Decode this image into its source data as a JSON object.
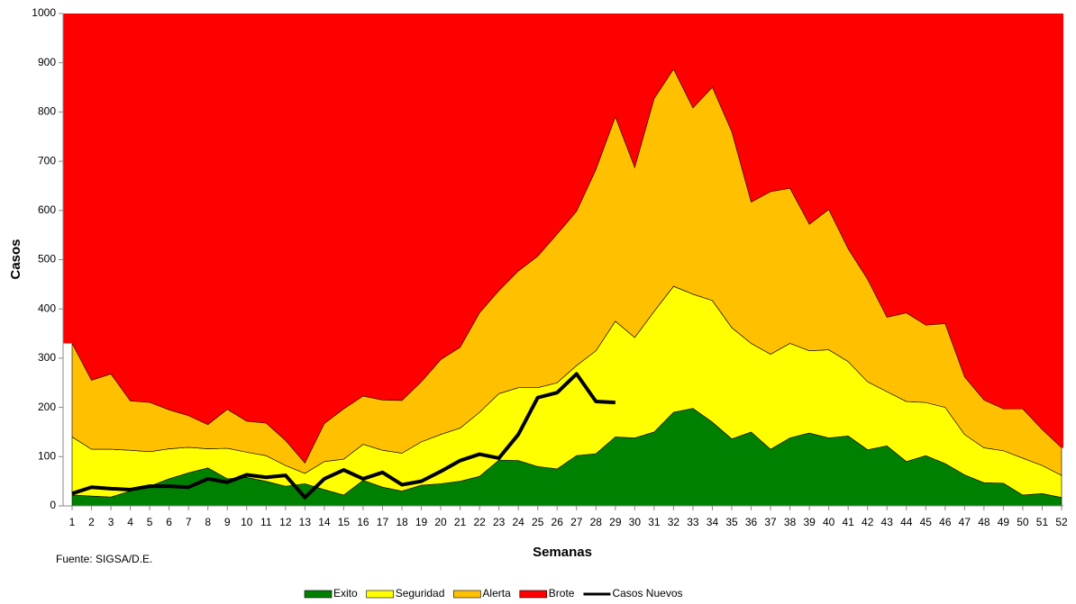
{
  "chart_data": {
    "type": "stacked-area",
    "x_label": "Semanas",
    "y_label": "Casos",
    "source": "Fuente: SIGSA/D.E.",
    "x": [
      1,
      2,
      3,
      4,
      5,
      6,
      7,
      8,
      9,
      10,
      11,
      12,
      13,
      14,
      15,
      16,
      17,
      18,
      19,
      20,
      21,
      22,
      23,
      24,
      25,
      26,
      27,
      28,
      29,
      30,
      31,
      32,
      33,
      34,
      35,
      36,
      37,
      38,
      39,
      40,
      41,
      42,
      43,
      44,
      45,
      46,
      47,
      48,
      49,
      50,
      51,
      52
    ],
    "ylim": [
      0,
      1000
    ],
    "yticks": [
      0,
      100,
      200,
      300,
      400,
      500,
      600,
      700,
      800,
      900,
      1000
    ],
    "series": [
      {
        "name": "Exito",
        "color": "#008000",
        "values": [
          22,
          20,
          18,
          30,
          40,
          55,
          67,
          77,
          55,
          58,
          50,
          40,
          45,
          33,
          22,
          52,
          38,
          30,
          42,
          45,
          50,
          60,
          93,
          92,
          80,
          75,
          102,
          106,
          140,
          138,
          150,
          190,
          198,
          170,
          136,
          150,
          115,
          138,
          148,
          138,
          142,
          114,
          122,
          90,
          102,
          86,
          63,
          47,
          46,
          22,
          25,
          17
        ]
      },
      {
        "name": "Seguridad",
        "color": "#ffff00",
        "values": [
          118,
          95,
          97,
          83,
          70,
          61,
          52,
          39,
          62,
          51,
          52,
          42,
          21,
          57,
          73,
          73,
          75,
          77,
          88,
          100,
          108,
          130,
          135,
          148,
          160,
          175,
          183,
          209,
          235,
          204,
          245,
          256,
          232,
          247,
          226,
          180,
          193,
          192,
          167,
          179,
          151,
          138,
          110,
          122,
          108,
          114,
          82,
          71,
          66,
          75,
          57,
          45
        ]
      },
      {
        "name": "Alerta",
        "color": "#ffc000",
        "values": [
          190,
          140,
          153,
          100,
          100,
          79,
          64,
          49,
          79,
          63,
          66,
          51,
          21,
          77,
          102,
          98,
          102,
          107,
          122,
          152,
          164,
          202,
          209,
          237,
          267,
          302,
          313,
          368,
          415,
          345,
          432,
          441,
          378,
          433,
          398,
          287,
          330,
          315,
          257,
          285,
          229,
          208,
          151,
          180,
          157,
          170,
          117,
          97,
          85,
          100,
          73,
          56
        ]
      }
    ],
    "fill_series": {
      "name": "Brote",
      "color": "#ff0000"
    },
    "line_series": {
      "name": "Casos Nuevos",
      "color": "#000000",
      "values": [
        25,
        38,
        35,
        33,
        40,
        40,
        38,
        55,
        48,
        63,
        58,
        62,
        17,
        55,
        73,
        55,
        68,
        43,
        50,
        70,
        92,
        105,
        97,
        145,
        220,
        230,
        268,
        212,
        210,
        null,
        null,
        null,
        null,
        null,
        null,
        null,
        null,
        null,
        null,
        null,
        null,
        null,
        null,
        null,
        null,
        null,
        null,
        null,
        null,
        null,
        null,
        null
      ]
    }
  }
}
